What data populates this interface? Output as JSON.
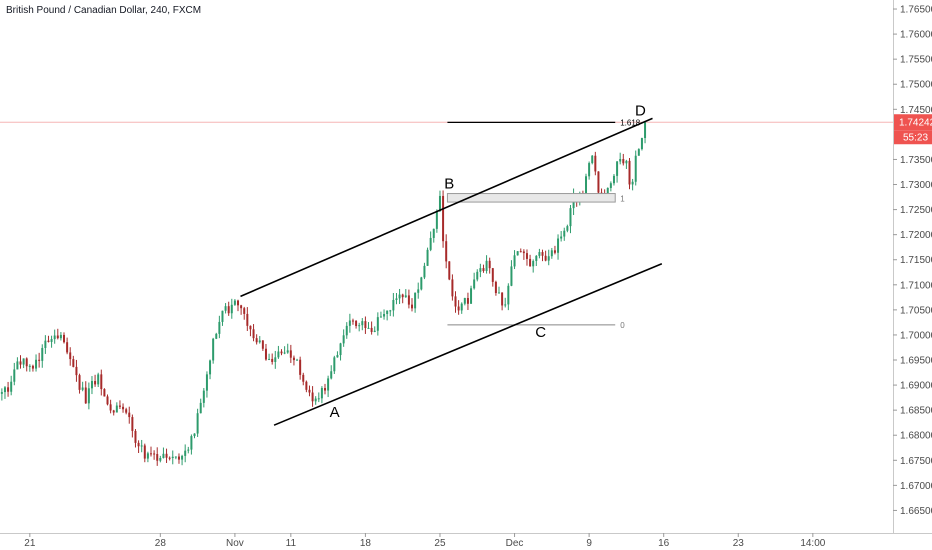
{
  "header": {
    "symbol_title": "British Pound / Canadian Dollar, 240, FXCM"
  },
  "colors": {
    "bull": "#2d9b6c",
    "bear": "#a72a2a",
    "wick": "#444444",
    "price_tag": "#ef5350",
    "price_line": "#f5b5b5",
    "channel": "#000000",
    "fib_line": "#000000",
    "fib_zero": "#888888",
    "zone_fill": "#e8e8e8",
    "zone_stroke": "#9a9a9a"
  },
  "chart_data": {
    "type": "candlestick",
    "symbol": "GBPCAD",
    "timeframe": "240",
    "ylim": [
      1.6605,
      1.7668
    ],
    "y_ticks": [
      1.765,
      1.76,
      1.755,
      1.75,
      1.745,
      1.735,
      1.73,
      1.725,
      1.72,
      1.715,
      1.71,
      1.705,
      1.7,
      1.695,
      1.69,
      1.685,
      1.68,
      1.675,
      1.67,
      1.665
    ],
    "y_tick_labels": [
      "1.76500",
      "1.76000",
      "1.75500",
      "1.75000",
      "1.74500",
      "1.73500",
      "1.73000",
      "1.72500",
      "1.72000",
      "1.71500",
      "1.71000",
      "1.70500",
      "1.70000",
      "1.69500",
      "1.69000",
      "1.68500",
      "1.68000",
      "1.67500",
      "1.67000",
      "1.66500"
    ],
    "x_range": [
      -1.6,
      46.3
    ],
    "x_ticks": [
      {
        "day": 0,
        "label": "21"
      },
      {
        "day": 7,
        "label": "28"
      },
      {
        "day": 11,
        "label": "Nov"
      },
      {
        "day": 14,
        "label": "11"
      },
      {
        "day": 18,
        "label": "18"
      },
      {
        "day": 22,
        "label": "25"
      },
      {
        "day": 26,
        "label": "Dec"
      },
      {
        "day": 30,
        "label": "9"
      },
      {
        "day": 34,
        "label": "16"
      },
      {
        "day": 38,
        "label": "23"
      },
      {
        "day": 42,
        "label": "14:00"
      }
    ],
    "current_price": {
      "value": 1.74242,
      "label": "1.74242",
      "countdown": "55:23"
    },
    "waypoints": [
      [
        -1.6,
        1.688
      ],
      [
        -1.2,
        1.689
      ],
      [
        -0.6,
        1.695
      ],
      [
        0.2,
        1.694
      ],
      [
        1.0,
        1.699
      ],
      [
        1.6,
        1.7
      ],
      [
        2.3,
        1.693
      ],
      [
        3.0,
        1.687
      ],
      [
        3.6,
        1.692
      ],
      [
        4.3,
        1.684
      ],
      [
        5.0,
        1.686
      ],
      [
        5.6,
        1.68
      ],
      [
        6.2,
        1.676
      ],
      [
        6.9,
        1.675
      ],
      [
        7.6,
        1.676
      ],
      [
        8.4,
        1.676
      ],
      [
        8.9,
        1.682
      ],
      [
        9.5,
        1.693
      ],
      [
        10.2,
        1.704
      ],
      [
        10.9,
        1.706
      ],
      [
        11.4,
        1.705
      ],
      [
        11.9,
        1.7
      ],
      [
        12.5,
        1.697
      ],
      [
        13.0,
        1.694
      ],
      [
        13.6,
        1.697
      ],
      [
        14.1,
        1.696
      ],
      [
        14.8,
        1.69
      ],
      [
        15.3,
        1.686
      ],
      [
        15.9,
        1.69
      ],
      [
        16.4,
        1.696
      ],
      [
        17.0,
        1.702
      ],
      [
        17.6,
        1.703
      ],
      [
        18.3,
        1.701
      ],
      [
        19.0,
        1.704
      ],
      [
        19.8,
        1.708
      ],
      [
        20.5,
        1.706
      ],
      [
        21.0,
        1.712
      ],
      [
        21.6,
        1.72
      ],
      [
        22.0,
        1.727
      ],
      [
        22.2,
        1.716
      ],
      [
        22.6,
        1.709
      ],
      [
        23.0,
        1.705
      ],
      [
        23.5,
        1.707
      ],
      [
        24.0,
        1.713
      ],
      [
        24.6,
        1.714
      ],
      [
        25.1,
        1.708
      ],
      [
        25.5,
        1.706
      ],
      [
        25.9,
        1.715
      ],
      [
        26.4,
        1.718
      ],
      [
        26.9,
        1.714
      ],
      [
        27.4,
        1.716
      ],
      [
        27.9,
        1.715
      ],
      [
        28.4,
        1.719
      ],
      [
        28.9,
        1.723
      ],
      [
        29.2,
        1.728
      ],
      [
        29.6,
        1.727
      ],
      [
        30.1,
        1.737
      ],
      [
        30.5,
        1.729
      ],
      [
        31.0,
        1.729
      ],
      [
        31.5,
        1.734
      ],
      [
        32.0,
        1.734
      ],
      [
        32.2,
        1.728
      ],
      [
        32.6,
        1.737
      ],
      [
        33.1,
        1.7424
      ]
    ],
    "annotations": {
      "points": [
        {
          "label": "A",
          "day": 16.35,
          "price": 1.6872
        },
        {
          "label": "B",
          "day": 22.5,
          "price": 1.7274
        },
        {
          "label": "C",
          "day": 27.4,
          "price": 1.7032
        },
        {
          "label": "D",
          "day": 32.75,
          "price": 1.742
        }
      ],
      "channel_upper": {
        "from": {
          "day": 11.3,
          "price": 1.7077
        },
        "to": {
          "day": 33.4,
          "price": 1.7432
        }
      },
      "channel_lower": {
        "from": {
          "day": 13.1,
          "price": 1.682
        },
        "to": {
          "day": 33.9,
          "price": 1.7142
        }
      },
      "fib": {
        "from_day": 22.4,
        "to_day": 31.4,
        "levels": [
          {
            "label": "1.618",
            "price": 1.7424
          },
          {
            "label": "1",
            "price": 1.7272
          },
          {
            "label": "0",
            "price": 1.702
          }
        ],
        "zone": {
          "price_high": 1.7282,
          "price_low": 1.7265
        }
      }
    }
  }
}
